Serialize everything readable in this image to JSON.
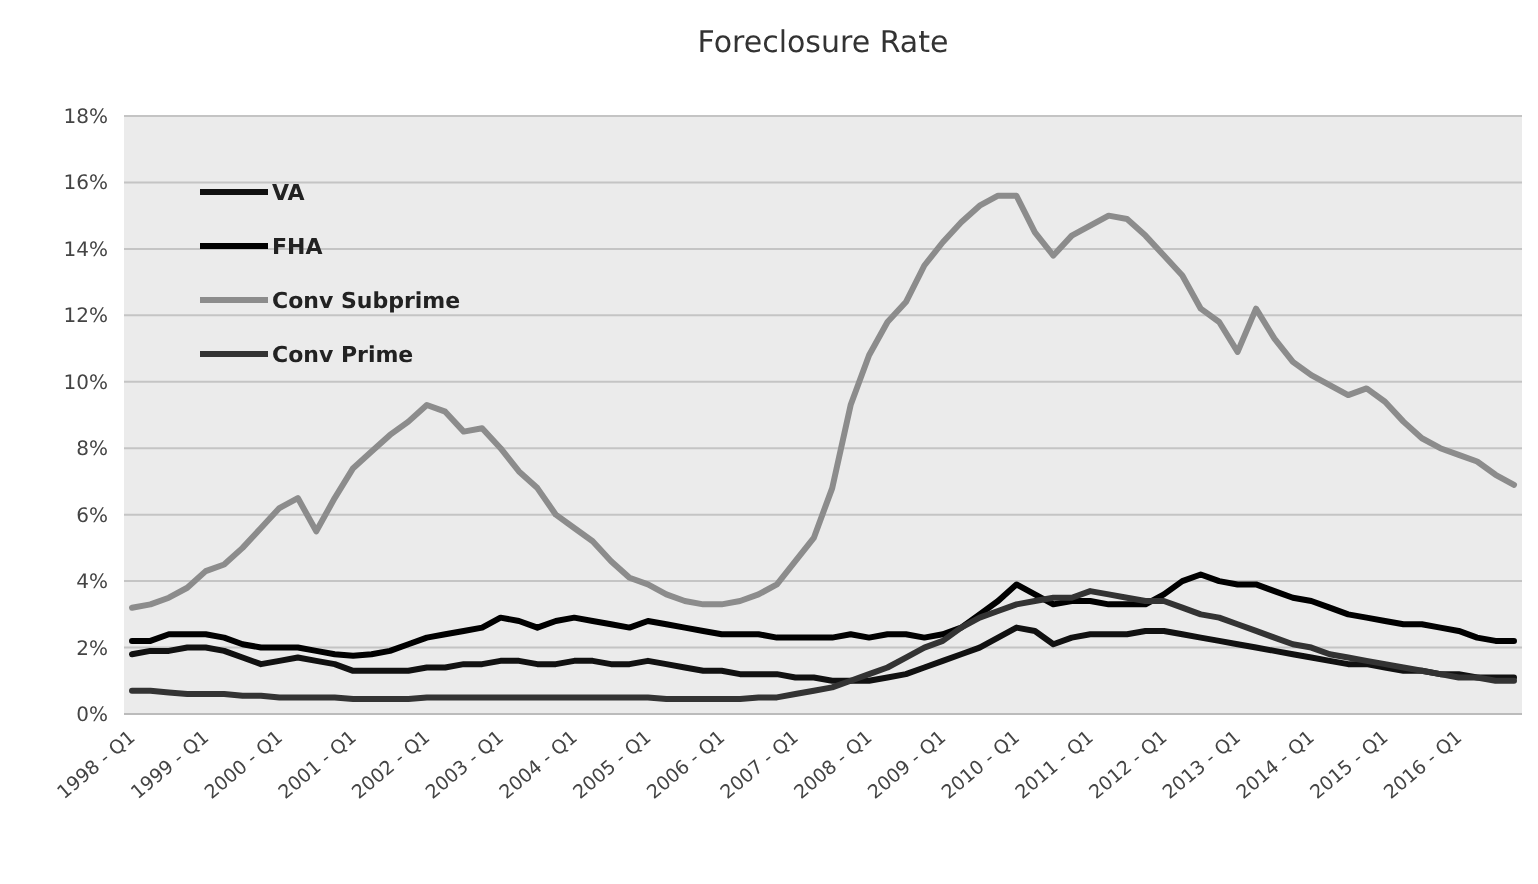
{
  "chart_data": {
    "type": "line",
    "title": "Foreclosure Rate",
    "categories": [
      "1998 - Q1",
      null,
      null,
      null,
      "1999 - Q1",
      null,
      null,
      null,
      "2000 - Q1",
      null,
      null,
      null,
      "2001 - Q1",
      null,
      null,
      null,
      "2002 - Q1",
      null,
      null,
      null,
      "2003 - Q1",
      null,
      null,
      null,
      "2004 - Q1",
      null,
      null,
      null,
      "2005 - Q1",
      null,
      null,
      null,
      "2006 - Q1",
      null,
      null,
      null,
      "2007 - Q1",
      null,
      null,
      null,
      "2008 - Q1",
      null,
      null,
      null,
      "2009 - Q1",
      null,
      null,
      null,
      "2010 - Q1",
      null,
      null,
      null,
      "2011 - Q1",
      null,
      null,
      null,
      "2012 - Q1",
      null,
      null,
      null,
      "2013 - Q1",
      null,
      null,
      null,
      "2014 - Q1",
      null,
      null,
      null,
      "2015 - Q1",
      null,
      null,
      null,
      "2016 - Q1",
      null,
      null,
      null
    ],
    "series": [
      {
        "name": "VA",
        "color": "#111111",
        "values": [
          1.8,
          1.9,
          1.9,
          2.0,
          2.0,
          1.9,
          1.7,
          1.5,
          1.6,
          1.7,
          1.6,
          1.5,
          1.3,
          1.3,
          1.3,
          1.3,
          1.4,
          1.4,
          1.5,
          1.5,
          1.6,
          1.6,
          1.5,
          1.5,
          1.6,
          1.6,
          1.5,
          1.5,
          1.6,
          1.5,
          1.4,
          1.3,
          1.3,
          1.2,
          1.2,
          1.2,
          1.1,
          1.1,
          1.0,
          1.0,
          1.0,
          1.1,
          1.2,
          1.4,
          1.6,
          1.8,
          2.0,
          2.3,
          2.6,
          2.5,
          2.1,
          2.3,
          2.4,
          2.4,
          2.4,
          2.5,
          2.5,
          2.4,
          2.3,
          2.2,
          2.1,
          2.0,
          1.9,
          1.8,
          1.7,
          1.6,
          1.5,
          1.5,
          1.4,
          1.3,
          1.3,
          1.2,
          1.2,
          1.1,
          1.1,
          1.1
        ]
      },
      {
        "name": "FHA",
        "color": "#000000",
        "values": [
          2.2,
          2.2,
          2.4,
          2.4,
          2.4,
          2.3,
          2.1,
          2.0,
          2.0,
          2.0,
          1.9,
          1.8,
          1.75,
          1.8,
          1.9,
          2.1,
          2.3,
          2.4,
          2.5,
          2.6,
          2.9,
          2.8,
          2.6,
          2.8,
          2.9,
          2.8,
          2.7,
          2.6,
          2.8,
          2.7,
          2.6,
          2.5,
          2.4,
          2.4,
          2.4,
          2.3,
          2.3,
          2.3,
          2.3,
          2.4,
          2.3,
          2.4,
          2.4,
          2.3,
          2.4,
          2.6,
          3.0,
          3.4,
          3.9,
          3.6,
          3.3,
          3.4,
          3.4,
          3.3,
          3.3,
          3.3,
          3.6,
          4.0,
          4.2,
          4.0,
          3.9,
          3.9,
          3.7,
          3.5,
          3.4,
          3.2,
          3.0,
          2.9,
          2.8,
          2.7,
          2.7,
          2.6,
          2.5,
          2.3,
          2.2,
          2.2
        ]
      },
      {
        "name": "Conv Subprime",
        "color": "#8c8c8c",
        "values": [
          3.2,
          3.3,
          3.5,
          3.8,
          4.3,
          4.5,
          5.0,
          5.6,
          6.2,
          6.5,
          5.5,
          6.5,
          7.4,
          7.9,
          8.4,
          8.8,
          9.3,
          9.1,
          8.5,
          8.6,
          8.0,
          7.3,
          6.8,
          6.0,
          5.6,
          5.2,
          4.6,
          4.1,
          3.9,
          3.6,
          3.4,
          3.3,
          3.3,
          3.4,
          3.6,
          3.9,
          4.6,
          5.3,
          6.8,
          9.3,
          10.8,
          11.8,
          12.4,
          13.5,
          14.2,
          14.8,
          15.3,
          15.6,
          15.6,
          14.5,
          13.8,
          14.4,
          14.7,
          15.0,
          14.9,
          14.4,
          13.8,
          13.2,
          12.2,
          11.8,
          10.9,
          12.2,
          11.3,
          10.6,
          10.2,
          9.9,
          9.6,
          9.8,
          9.4,
          8.8,
          8.3,
          8.0,
          7.8,
          7.6,
          7.2,
          6.9
        ]
      },
      {
        "name": "Conv Prime",
        "color": "#333333",
        "values": [
          0.7,
          0.7,
          0.65,
          0.6,
          0.6,
          0.6,
          0.55,
          0.55,
          0.5,
          0.5,
          0.5,
          0.5,
          0.45,
          0.45,
          0.45,
          0.45,
          0.5,
          0.5,
          0.5,
          0.5,
          0.5,
          0.5,
          0.5,
          0.5,
          0.5,
          0.5,
          0.5,
          0.5,
          0.5,
          0.45,
          0.45,
          0.45,
          0.45,
          0.45,
          0.5,
          0.5,
          0.6,
          0.7,
          0.8,
          1.0,
          1.2,
          1.4,
          1.7,
          2.0,
          2.2,
          2.6,
          2.9,
          3.1,
          3.3,
          3.4,
          3.5,
          3.5,
          3.7,
          3.6,
          3.5,
          3.4,
          3.4,
          3.2,
          3.0,
          2.9,
          2.7,
          2.5,
          2.3,
          2.1,
          2.0,
          1.8,
          1.7,
          1.6,
          1.5,
          1.4,
          1.3,
          1.2,
          1.1,
          1.1,
          1.0,
          1.0
        ]
      }
    ],
    "ylim": [
      0,
      18
    ],
    "yticks": [
      {
        "value": 0,
        "label": "0%"
      },
      {
        "value": 2,
        "label": "2%"
      },
      {
        "value": 4,
        "label": "4%"
      },
      {
        "value": 6,
        "label": "6%"
      },
      {
        "value": 8,
        "label": "8%"
      },
      {
        "value": 10,
        "label": "10%"
      },
      {
        "value": 12,
        "label": "12%"
      },
      {
        "value": 14,
        "label": "14%"
      },
      {
        "value": 16,
        "label": "16%"
      },
      {
        "value": 18,
        "label": "18%"
      }
    ],
    "grid": "y",
    "legend": "top left",
    "line_style": "solid",
    "marker": "none"
  }
}
